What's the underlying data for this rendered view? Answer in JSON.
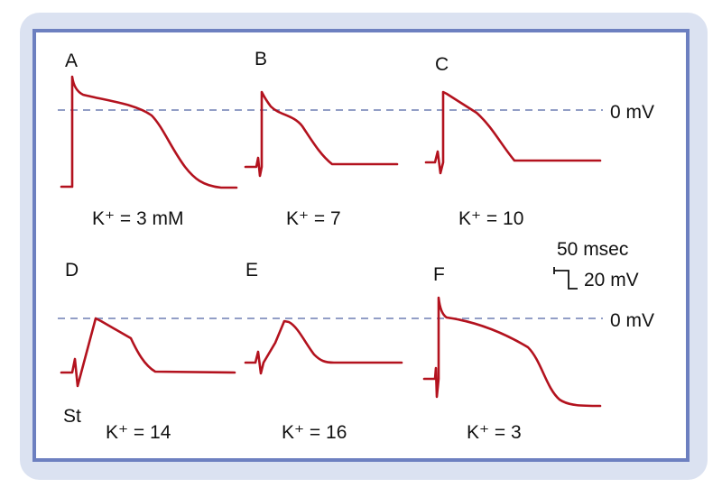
{
  "panels": [
    {
      "label": "A",
      "potassium": "K⁺ = 3 mM"
    },
    {
      "label": "B",
      "potassium": "K⁺ = 7"
    },
    {
      "label": "C",
      "potassium": "K⁺ = 10"
    },
    {
      "label": "D",
      "potassium": "K⁺ = 14"
    },
    {
      "label": "E",
      "potassium": "K⁺ = 16"
    },
    {
      "label": "F",
      "potassium": "K⁺ = 3"
    }
  ],
  "zero_lines": [
    "0 mV",
    "0 mV"
  ],
  "scale_bar": {
    "time": "50 msec",
    "voltage": "20 mV"
  },
  "stimulus_label": "St"
}
